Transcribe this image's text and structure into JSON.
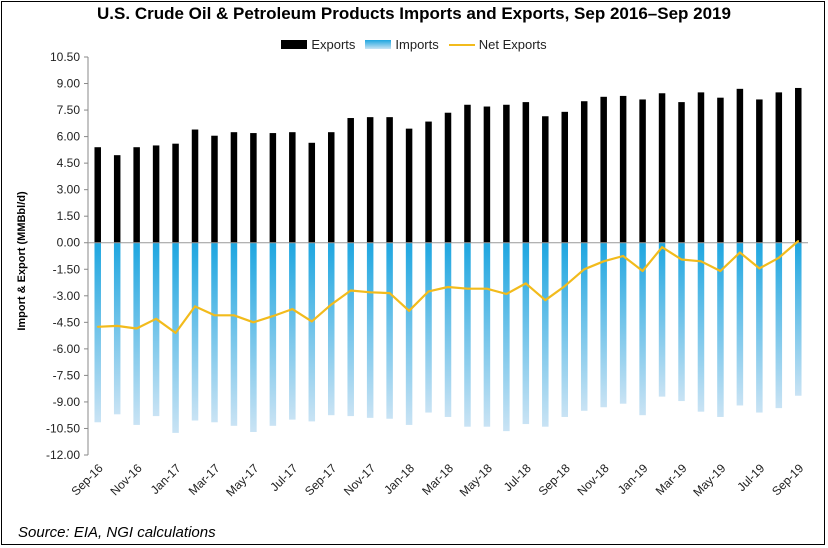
{
  "title": "U.S. Crude Oil & Petroleum Products Imports and Exports, Sep 2016–Sep 2019",
  "source": "Source: EIA, NGI calculations",
  "legend": {
    "exports": "Exports",
    "imports": "Imports",
    "net": "Net Exports"
  },
  "colors": {
    "exports": "#000000",
    "imports_top": "#1ea6e0",
    "imports_bottom": "#c9e3f4",
    "net": "#f2bb1c"
  },
  "chart_data": {
    "type": "bar",
    "title": "U.S. Crude Oil & Petroleum Products Imports and Exports, Sep 2016–Sep 2019",
    "ylabel": "Import & Export (MMBbl/d)",
    "xlabel": "",
    "ylim": [
      -12.0,
      10.5
    ],
    "yticks": [
      "10.50",
      "9.00",
      "7.50",
      "6.00",
      "4.50",
      "3.00",
      "1.50",
      "0.00",
      "-1.50",
      "-3.00",
      "-4.50",
      "-6.00",
      "-7.50",
      "-9.00",
      "-10.50",
      "-12.00"
    ],
    "ytick_values": [
      10.5,
      9,
      7.5,
      6,
      4.5,
      3,
      1.5,
      0,
      -1.5,
      -3,
      -4.5,
      -6,
      -7.5,
      -9,
      -10.5,
      -12
    ],
    "grid": false,
    "legend_position": "top",
    "categories": [
      "Sep-16",
      "Oct-16",
      "Nov-16",
      "Dec-16",
      "Jan-17",
      "Feb-17",
      "Mar-17",
      "Apr-17",
      "May-17",
      "Jun-17",
      "Jul-17",
      "Aug-17",
      "Sep-17",
      "Oct-17",
      "Nov-17",
      "Dec-17",
      "Jan-18",
      "Feb-18",
      "Mar-18",
      "Apr-18",
      "May-18",
      "Jun-18",
      "Jul-18",
      "Aug-18",
      "Sep-18",
      "Oct-18",
      "Nov-18",
      "Dec-18",
      "Jan-19",
      "Feb-19",
      "Mar-19",
      "Apr-19",
      "May-19",
      "Jun-19",
      "Jul-19",
      "Aug-19",
      "Sep-19"
    ],
    "xtick_labels": [
      "Sep-16",
      "Nov-16",
      "Jan-17",
      "Mar-17",
      "May-17",
      "Jul-17",
      "Sep-17",
      "Nov-17",
      "Jan-18",
      "Mar-18",
      "May-18",
      "Jul-18",
      "Sep-18",
      "Nov-18",
      "Jan-19",
      "Mar-19",
      "May-19",
      "Jul-19",
      "Sep-19"
    ],
    "series": [
      {
        "name": "Exports",
        "type": "bar",
        "values": [
          5.4,
          4.95,
          5.4,
          5.5,
          5.6,
          6.4,
          6.05,
          6.25,
          6.2,
          6.2,
          6.25,
          5.65,
          6.25,
          7.05,
          7.1,
          7.1,
          6.45,
          6.85,
          7.35,
          7.8,
          7.7,
          7.8,
          7.95,
          7.15,
          7.4,
          8.0,
          8.25,
          8.3,
          8.1,
          8.45,
          7.95,
          8.5,
          8.2,
          8.7,
          8.1,
          8.5,
          8.75
        ]
      },
      {
        "name": "Imports",
        "type": "bar",
        "values": [
          -10.15,
          -9.7,
          -10.3,
          -9.8,
          -10.75,
          -10.05,
          -10.15,
          -10.35,
          -10.7,
          -10.35,
          -10.0,
          -10.1,
          -9.75,
          -9.8,
          -9.9,
          -9.95,
          -10.3,
          -9.6,
          -9.85,
          -10.4,
          -10.4,
          -10.65,
          -10.25,
          -10.4,
          -9.85,
          -9.5,
          -9.3,
          -9.1,
          -9.75,
          -8.7,
          -8.95,
          -9.55,
          -9.85,
          -9.2,
          -9.6,
          -9.35,
          -8.65
        ]
      },
      {
        "name": "Net Exports",
        "type": "line",
        "values": [
          -4.75,
          -4.7,
          -4.85,
          -4.3,
          -5.1,
          -3.6,
          -4.1,
          -4.1,
          -4.5,
          -4.15,
          -3.75,
          -4.45,
          -3.5,
          -2.7,
          -2.8,
          -2.85,
          -3.85,
          -2.75,
          -2.5,
          -2.6,
          -2.6,
          -2.9,
          -2.3,
          -3.25,
          -2.45,
          -1.5,
          -1.05,
          -0.75,
          -1.6,
          -0.25,
          -0.95,
          -1.05,
          -1.6,
          -0.55,
          -1.45,
          -0.85,
          0.1
        ]
      }
    ]
  }
}
